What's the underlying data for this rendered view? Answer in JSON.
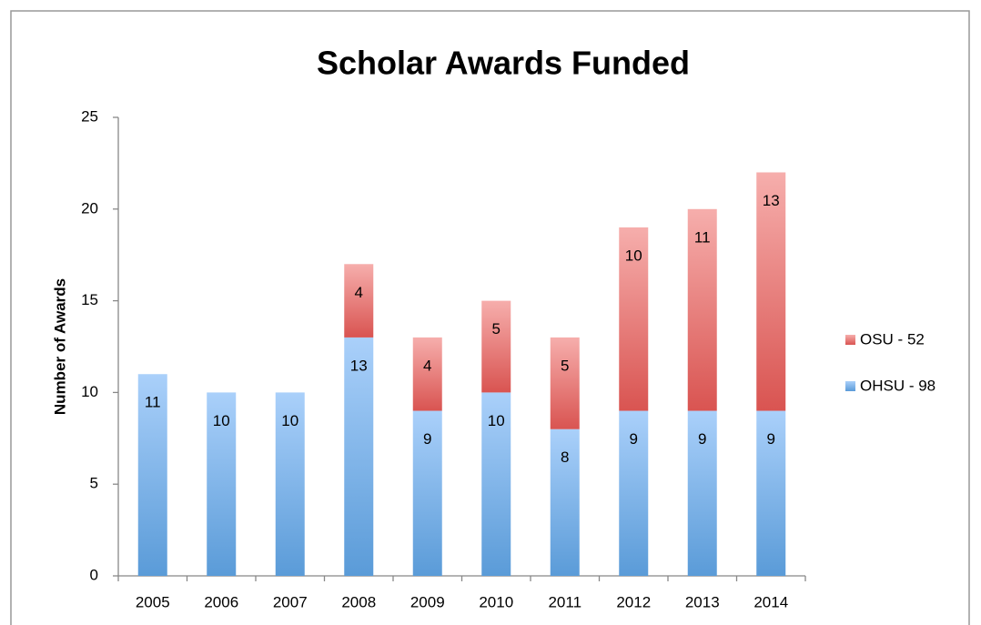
{
  "chart_data": {
    "type": "stacked_bar",
    "title": "Scholar Awards Funded",
    "y_label": "Number of Awards",
    "categories": [
      "2005",
      "2006",
      "2007",
      "2008",
      "2009",
      "2010",
      "2011",
      "2012",
      "2013",
      "2014"
    ],
    "series": [
      {
        "name": "OHSU - 98",
        "color": [
          "#aad0fa",
          "#5a9bd8"
        ],
        "values": [
          11,
          10,
          10,
          13,
          9,
          10,
          8,
          9,
          9,
          9
        ]
      },
      {
        "name": "OSU - 52",
        "color": [
          "#f6aeac",
          "#d95451"
        ],
        "values": [
          null,
          null,
          null,
          4,
          4,
          5,
          5,
          10,
          11,
          13
        ]
      }
    ],
    "ylim": [
      0,
      25
    ],
    "yticks": [
      0,
      5,
      10,
      15,
      20,
      25
    ],
    "grid": false,
    "legend": "right"
  }
}
